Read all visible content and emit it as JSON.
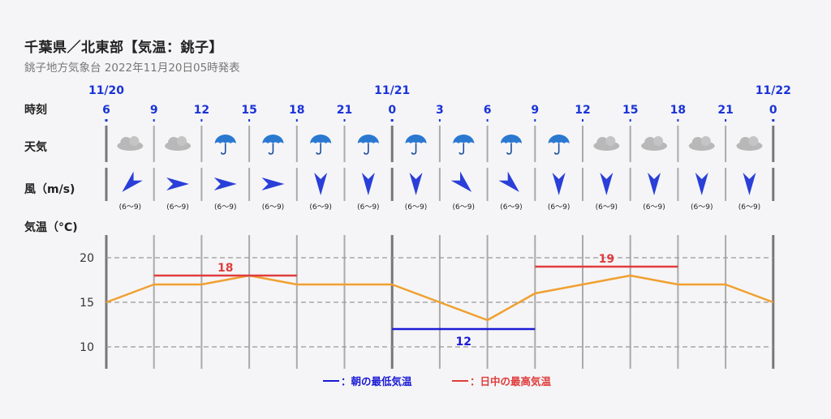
{
  "header": {
    "title": "千葉県／北東部【気温：銚子】",
    "subtitle": "銚子地方気象台 2022年11月20日05時発表"
  },
  "row_labels": {
    "time": "時刻",
    "weather": "天気",
    "wind": "風（m/s)",
    "temp": "気温（°C)"
  },
  "dates": [
    {
      "label": "11/20",
      "index": 0
    },
    {
      "label": "11/21",
      "index": 6
    },
    {
      "label": "11/22",
      "index": 14
    }
  ],
  "hours": [
    "6",
    "9",
    "12",
    "15",
    "18",
    "21",
    "0",
    "3",
    "6",
    "9",
    "12",
    "15",
    "18",
    "21",
    "0"
  ],
  "weather": [
    "cloudy",
    "cloudy",
    "rain",
    "rain",
    "rain",
    "rain",
    "rain",
    "rain",
    "rain",
    "rain",
    "cloudy",
    "cloudy",
    "cloudy",
    "cloudy"
  ],
  "wind": {
    "label": "(6〜9)",
    "directions_deg": [
      45,
      270,
      270,
      270,
      0,
      0,
      0,
      315,
      315,
      0,
      0,
      0,
      0,
      0
    ]
  },
  "legend": {
    "min_label": "：朝の最低気温",
    "max_label": "：日中の最高気温"
  },
  "colors": {
    "temp_line": "#f0a030",
    "max_line": "#e03c3c",
    "min_line": "#1a1ad6",
    "date": "#1a33d6",
    "grid": "#999999"
  },
  "chart_data": {
    "type": "line",
    "x": [
      "6",
      "9",
      "12",
      "15",
      "18",
      "21",
      "0",
      "3",
      "6",
      "9",
      "12",
      "15",
      "18",
      "21",
      "0"
    ],
    "series": [
      {
        "values": [
          15,
          17,
          17,
          18,
          17,
          17,
          17,
          15,
          13,
          16,
          17,
          18,
          17,
          17,
          15
        ]
      }
    ],
    "ylim": [
      8,
      22
    ],
    "yticks": [
      10,
      15,
      20
    ],
    "min_temps": [
      {
        "value": 12,
        "label": "12",
        "start": 6,
        "end": 9
      }
    ],
    "max_temps": [
      {
        "value": 18,
        "label": "18",
        "start": 1,
        "end": 4
      },
      {
        "value": 19,
        "label": "19",
        "start": 9,
        "end": 12
      }
    ],
    "grid": true
  }
}
